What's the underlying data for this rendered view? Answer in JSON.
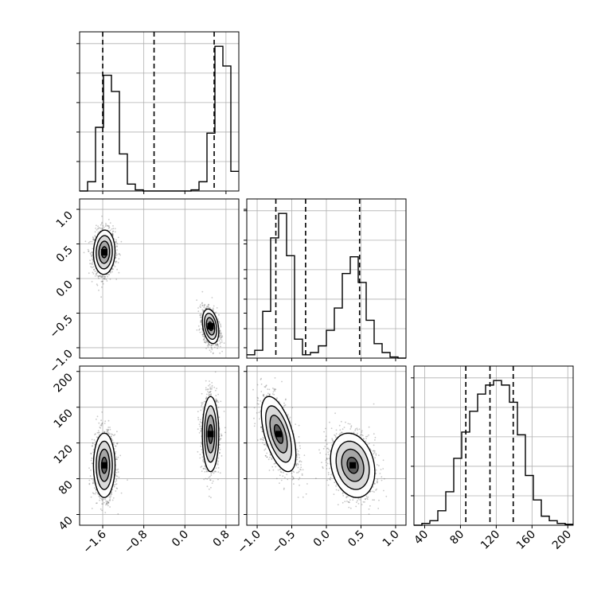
{
  "chart_data": {
    "type": "corner",
    "title": "",
    "parameters": [
      {
        "name": "",
        "range": [
          -2.05,
          1.05
        ],
        "ticks": [
          -1.6,
          -0.8,
          0.0,
          0.8
        ],
        "tick_labels": [
          "−1.6",
          "−0.8",
          "0.0",
          "0.8"
        ]
      },
      {
        "name": "",
        "range": [
          -1.15,
          1.15
        ],
        "ticks": [
          -1.0,
          -0.5,
          0.0,
          0.5,
          1.0
        ],
        "tick_labels": [
          "−1.0",
          "−0.5",
          "0.0",
          "0.5",
          "1.0"
        ]
      },
      {
        "name": "",
        "range": [
          28,
          206
        ],
        "ticks": [
          40,
          80,
          120,
          160,
          200
        ],
        "tick_labels": [
          "40",
          "80",
          "120",
          "160",
          "200"
        ]
      }
    ],
    "marginals": [
      {
        "bin_edges": [
          -2.05,
          -1.895,
          -1.74,
          -1.585,
          -1.43,
          -1.275,
          -1.12,
          -0.965,
          -0.81,
          -0.655,
          -0.5,
          -0.345,
          -0.19,
          -0.035,
          0.12,
          0.275,
          0.43,
          0.585,
          0.74,
          0.895,
          1.05
        ],
        "counts": [
          0,
          8,
          55,
          100,
          86,
          32,
          6,
          1,
          0,
          0,
          0,
          0,
          0,
          0,
          1,
          8,
          50,
          125,
          108,
          17
        ],
        "quantiles": [
          -1.6,
          -0.6,
          0.57
        ]
      },
      {
        "bin_edges": [
          -1.15,
          -1.035,
          -0.92,
          -0.805,
          -0.69,
          -0.575,
          -0.46,
          -0.345,
          -0.23,
          -0.115,
          0.0,
          0.115,
          0.23,
          0.345,
          0.46,
          0.575,
          0.69,
          0.805,
          0.92,
          1.035,
          1.15
        ],
        "counts": [
          3,
          7,
          42,
          108,
          130,
          92,
          17,
          3,
          5,
          11,
          25,
          45,
          76,
          91,
          68,
          34,
          13,
          5,
          1,
          0
        ],
        "quantiles": [
          -0.73,
          -0.3,
          0.48
        ]
      },
      {
        "bin_edges": [
          28,
          36.9,
          45.8,
          54.7,
          63.6,
          72.5,
          81.4,
          90.3,
          99.2,
          108.1,
          117,
          125.9,
          134.8,
          143.7,
          152.6,
          161.5,
          170.4,
          179.3,
          188.2,
          197.1,
          206
        ],
        "counts": [
          0,
          2,
          5,
          16,
          37,
          74,
          103,
          126,
          145,
          155,
          160,
          155,
          136,
          100,
          55,
          28,
          10,
          5,
          2,
          1
        ],
        "quantiles": [
          86,
          113,
          139
        ]
      }
    ],
    "modes": [
      {
        "mean": [
          -1.57,
          0.38,
          95
        ],
        "std": [
          0.105,
          0.16,
          18
        ]
      },
      {
        "mean": [
          0.5,
          -0.69,
          130
        ],
        "std": [
          0.08,
          0.125,
          21
        ]
      }
    ],
    "mode_correlation": [
      {
        "01": 0.05,
        "02": 0.0,
        "12": -0.2
      },
      {
        "01": -0.3,
        "02": 0.0,
        "12": -0.55
      }
    ],
    "grid": true,
    "legend": false
  }
}
